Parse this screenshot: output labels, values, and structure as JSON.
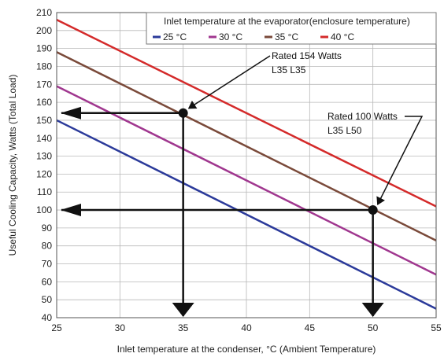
{
  "chart_data": {
    "type": "line",
    "xlabel": "Inlet temperature at the condenser, °C (Ambient Temperature)",
    "ylabel": "Useful Cooling Capacity, Watts (Total Load)",
    "xlim": [
      25,
      55
    ],
    "ylim": [
      40,
      210
    ],
    "x_ticks": [
      25,
      30,
      35,
      40,
      45,
      50,
      55
    ],
    "y_ticks": [
      40,
      50,
      60,
      70,
      80,
      90,
      100,
      110,
      120,
      130,
      140,
      150,
      160,
      170,
      180,
      190,
      200,
      210
    ],
    "grid": true,
    "legend_title": "Inlet temperature at the evaporator(enclosure temperature)",
    "legend_position": "top-right",
    "series": [
      {
        "name": "25 °C",
        "color": "#2b3a9a",
        "x": [
          25,
          55
        ],
        "y": [
          150,
          45
        ]
      },
      {
        "name": "30 °C",
        "color": "#a0378f",
        "x": [
          25,
          55
        ],
        "y": [
          169,
          64
        ]
      },
      {
        "name": "35 °C",
        "color": "#7a4a3a",
        "x": [
          25,
          55
        ],
        "y": [
          188,
          83
        ]
      },
      {
        "name": "40 °C",
        "color": "#d42a2a",
        "x": [
          25,
          55
        ],
        "y": [
          206,
          102
        ]
      }
    ],
    "annotations": [
      {
        "label_line1": "Rated 154 Watts",
        "label_line2": "L35 L35",
        "point": [
          35,
          154
        ]
      },
      {
        "label_line1": "Rated 100 Watts",
        "label_line2": "L35 L50",
        "point": [
          50,
          100
        ]
      }
    ]
  }
}
